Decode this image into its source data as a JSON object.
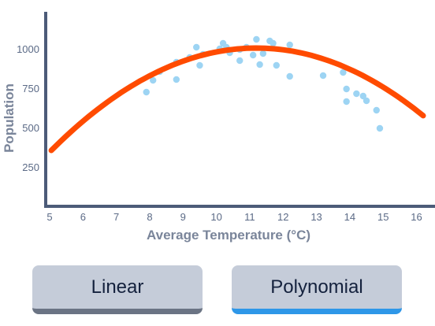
{
  "chart_data": {
    "type": "scatter",
    "xlabel": "Average Temperature (°C)",
    "ylabel": "Population",
    "xlim": [
      5,
      16.2
    ],
    "ylim": [
      0,
      1250
    ],
    "x_ticks": [
      5,
      6,
      7,
      8,
      9,
      10,
      11,
      12,
      13,
      14,
      15,
      16
    ],
    "y_ticks": [
      250,
      500,
      750,
      1000
    ],
    "grid": false,
    "points": [
      {
        "x": 7.9,
        "y": 725
      },
      {
        "x": 8.1,
        "y": 800
      },
      {
        "x": 8.3,
        "y": 855
      },
      {
        "x": 8.8,
        "y": 805
      },
      {
        "x": 8.8,
        "y": 915
      },
      {
        "x": 9.2,
        "y": 945
      },
      {
        "x": 9.4,
        "y": 1010
      },
      {
        "x": 9.5,
        "y": 895
      },
      {
        "x": 9.6,
        "y": 965
      },
      {
        "x": 10.1,
        "y": 1000
      },
      {
        "x": 10.2,
        "y": 1035
      },
      {
        "x": 10.3,
        "y": 1010
      },
      {
        "x": 10.4,
        "y": 975
      },
      {
        "x": 10.7,
        "y": 995
      },
      {
        "x": 10.7,
        "y": 925
      },
      {
        "x": 10.9,
        "y": 1010
      },
      {
        "x": 11.1,
        "y": 960
      },
      {
        "x": 11.2,
        "y": 1060
      },
      {
        "x": 11.3,
        "y": 900
      },
      {
        "x": 11.4,
        "y": 970
      },
      {
        "x": 11.6,
        "y": 1050
      },
      {
        "x": 11.7,
        "y": 1035
      },
      {
        "x": 11.8,
        "y": 895
      },
      {
        "x": 12.2,
        "y": 1025
      },
      {
        "x": 12.2,
        "y": 825
      },
      {
        "x": 13.2,
        "y": 830
      },
      {
        "x": 13.8,
        "y": 850
      },
      {
        "x": 13.9,
        "y": 745
      },
      {
        "x": 13.9,
        "y": 665
      },
      {
        "x": 14.2,
        "y": 715
      },
      {
        "x": 14.4,
        "y": 700
      },
      {
        "x": 14.5,
        "y": 670
      },
      {
        "x": 14.8,
        "y": 610
      },
      {
        "x": 14.9,
        "y": 495
      }
    ],
    "fit": {
      "type": "polynomial",
      "degree": 2,
      "x_start": 5.05,
      "x_end": 16.2,
      "y_start": 355,
      "vertex_x": 11.2,
      "vertex_y": 1005
    },
    "colors": {
      "points": "#9dd4f3",
      "fit": "#ff4b00",
      "axis": "#4c5b78"
    }
  },
  "buttons": {
    "linear_label": "Linear",
    "polynomial_label": "Polynomial"
  }
}
